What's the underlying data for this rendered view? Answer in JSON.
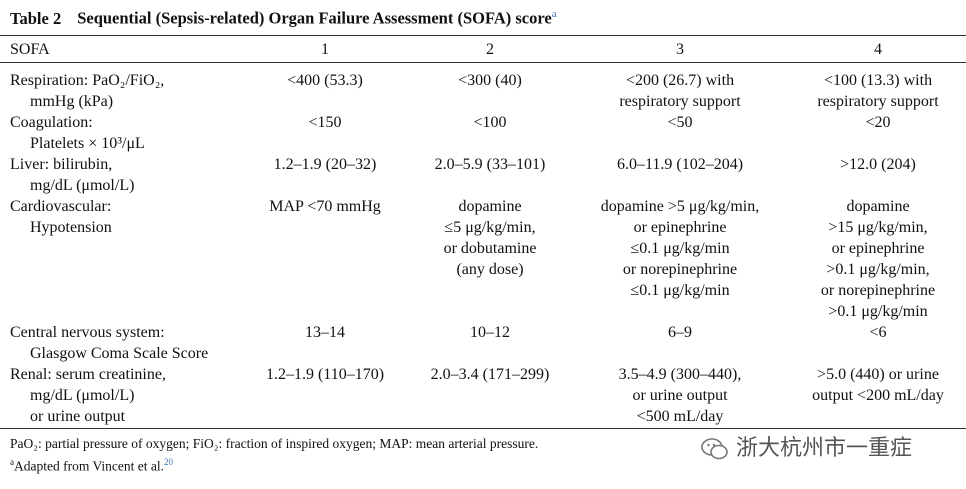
{
  "table": {
    "label": "Table 2",
    "title": "Sequential (Sepsis-related) Organ Failure Assessment (SOFA) score",
    "title_note": "a",
    "header": [
      "SOFA",
      "1",
      "2",
      "3",
      "4"
    ],
    "rows": [
      {
        "label": [
          "Respiration: PaO₂/FiO₂,",
          "mmHg (kPa)"
        ],
        "cells": [
          [
            "<400 (53.3)"
          ],
          [
            "<300 (40)"
          ],
          [
            "<200 (26.7) with",
            "respiratory support"
          ],
          [
            "<100 (13.3) with",
            "respiratory support"
          ]
        ]
      },
      {
        "label": [
          "Coagulation:",
          "Platelets × 10³/μL"
        ],
        "cells": [
          [
            "<150"
          ],
          [
            "<100"
          ],
          [
            "<50"
          ],
          [
            "<20"
          ]
        ]
      },
      {
        "label": [
          "Liver: bilirubin,",
          "mg/dL (μmol/L)"
        ],
        "cells": [
          [
            "1.2–1.9 (20–32)"
          ],
          [
            "2.0–5.9 (33–101)"
          ],
          [
            "6.0–11.9 (102–204)"
          ],
          [
            ">12.0 (204)"
          ]
        ]
      },
      {
        "label": [
          "Cardiovascular:",
          "Hypotension"
        ],
        "cells": [
          [
            "MAP <70 mmHg"
          ],
          [
            "dopamine",
            "≤5 μg/kg/min,",
            "or dobutamine",
            "(any dose)"
          ],
          [
            "dopamine >5 μg/kg/min,",
            "or epinephrine",
            "≤0.1 μg/kg/min",
            "or norepinephrine",
            "≤0.1 μg/kg/min"
          ],
          [
            "dopamine",
            ">15 μg/kg/min,",
            "or epinephrine",
            ">0.1 μg/kg/min,",
            "or norepinephrine",
            ">0.1 μg/kg/min"
          ]
        ]
      },
      {
        "label": [
          "Central nervous system:",
          "Glasgow Coma Scale Score"
        ],
        "cells": [
          [
            "13–14"
          ],
          [
            "10–12"
          ],
          [
            "6–9"
          ],
          [
            "<6"
          ]
        ]
      },
      {
        "label": [
          "Renal: serum creatinine,",
          "mg/dL (μmol/L)",
          "or urine output"
        ],
        "cells": [
          [
            "1.2–1.9 (110–170)"
          ],
          [
            "2.0–3.4 (171–299)"
          ],
          [
            "3.5–4.9 (300–440),",
            "or urine output",
            "<500 mL/day"
          ],
          [
            ">5.0 (440) or urine",
            "output <200 mL/day"
          ]
        ]
      }
    ]
  },
  "footnotes": {
    "abbreviations": "PaO₂: partial pressure of oxygen; FiO₂: fraction of inspired oxygen; MAP: mean arterial pressure.",
    "source_mark": "a",
    "source": "Adapted from Vincent et al.",
    "source_ref": "20"
  },
  "watermark": "浙大杭州市一重症"
}
